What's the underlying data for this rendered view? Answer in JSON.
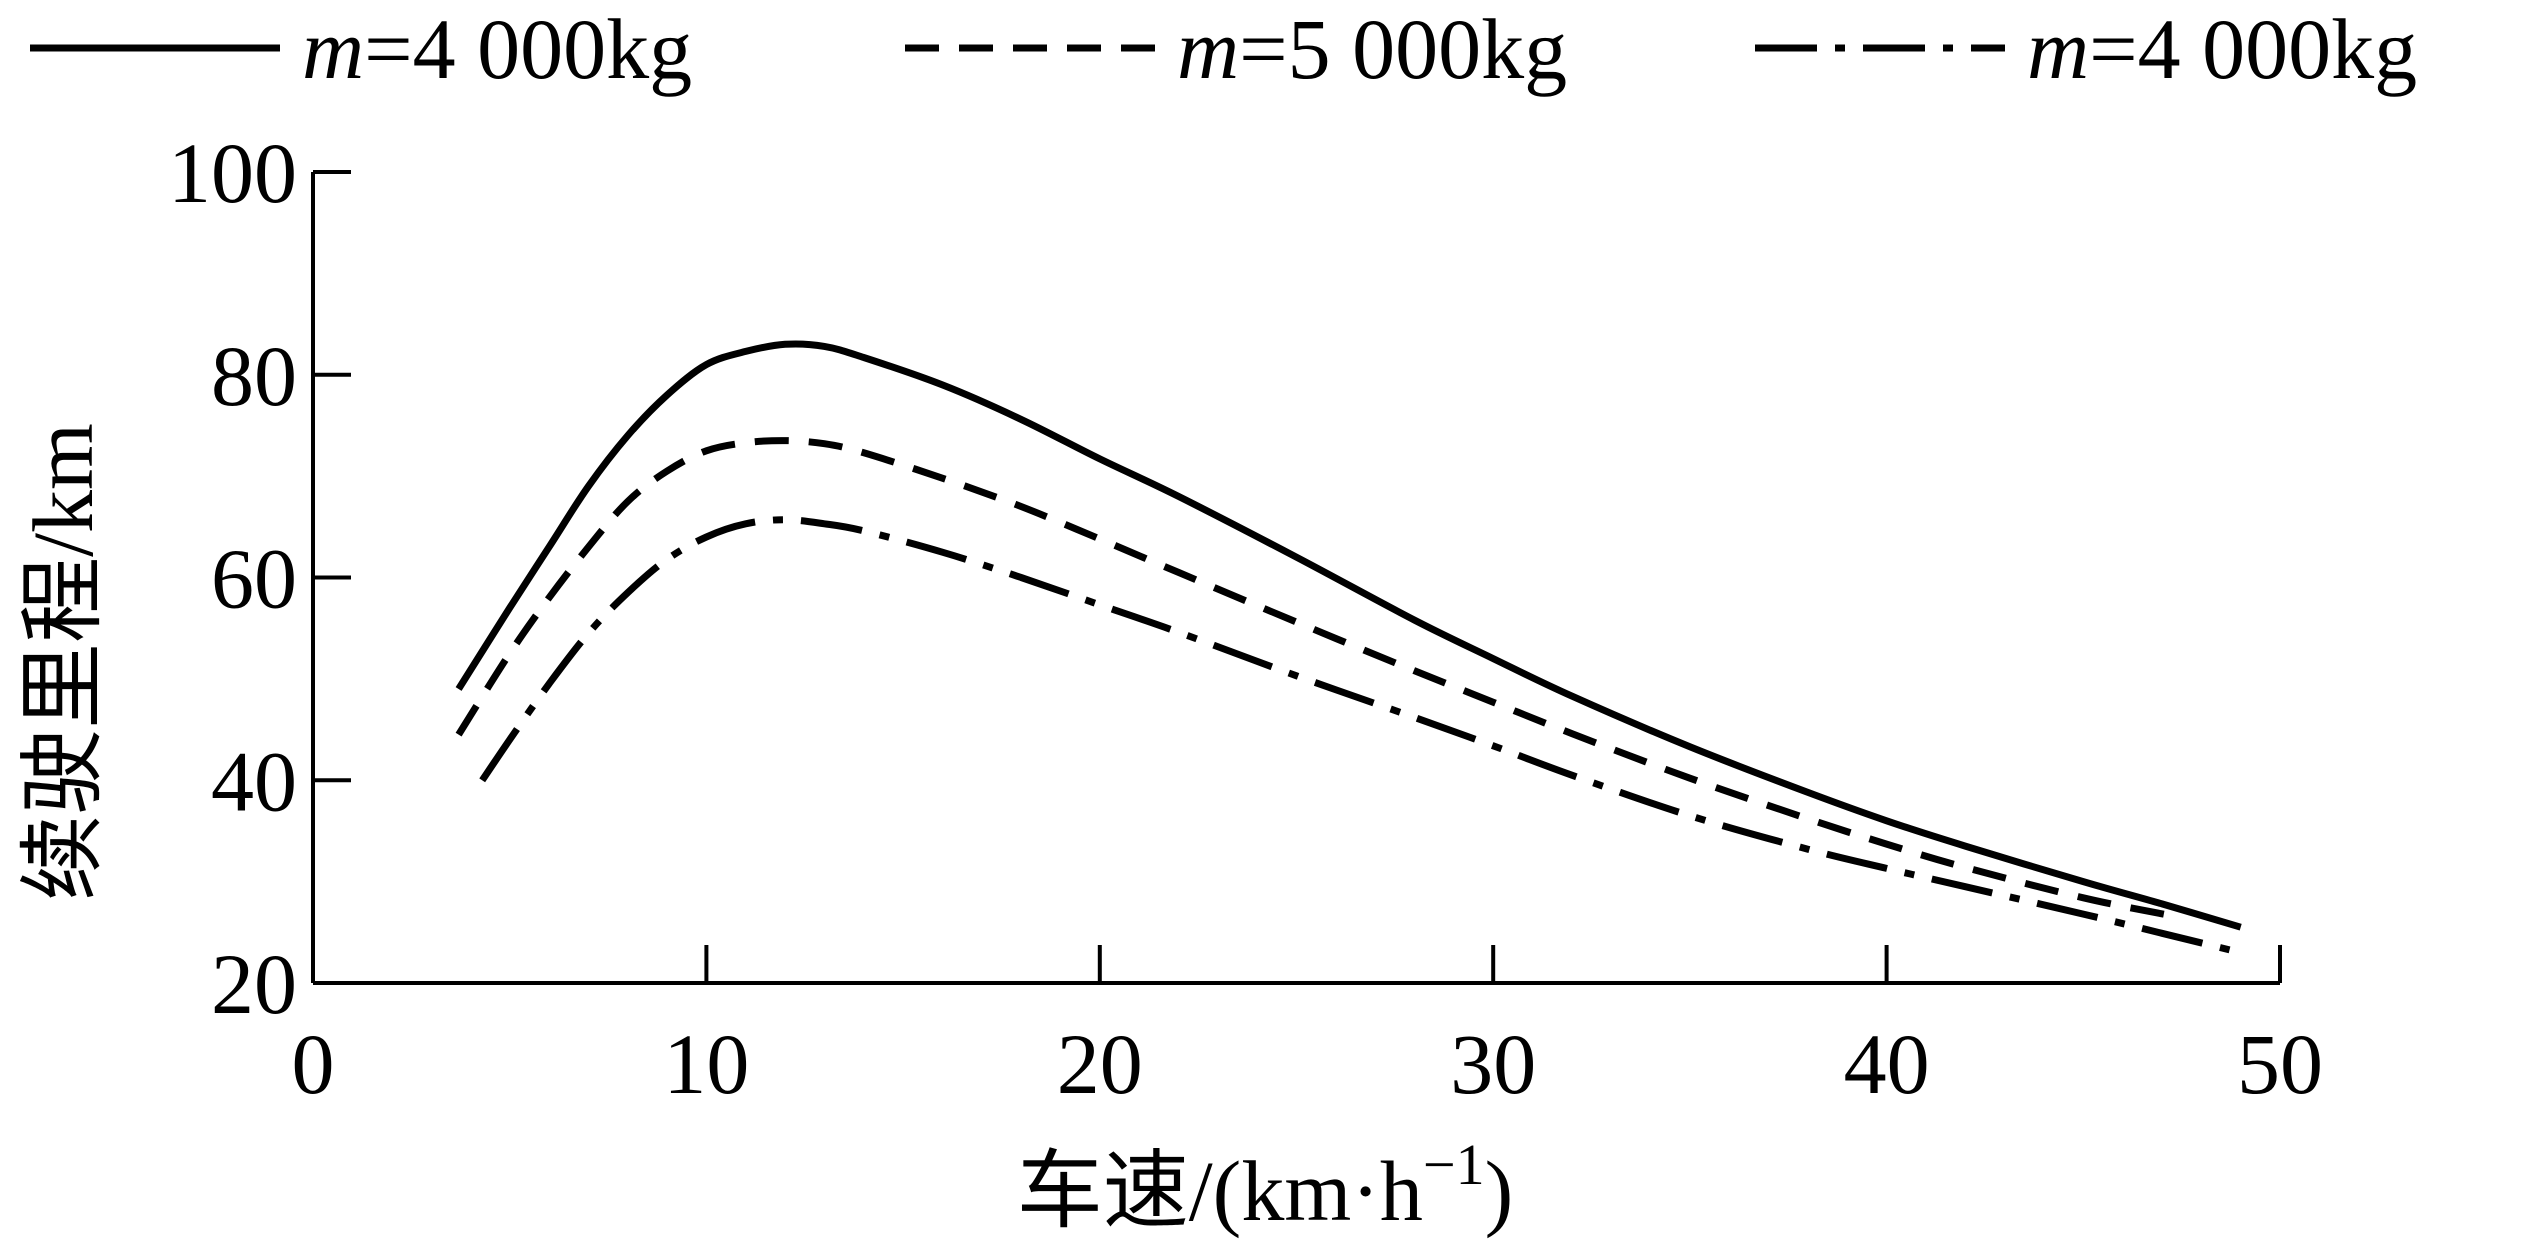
{
  "chart_data": {
    "type": "line",
    "title": "",
    "xlabel": "车速/(km·h",
    "xlabel_unit_exp": "−1",
    "xlabel_close": ")",
    "ylabel": "续驶里程/km",
    "xlim": [
      0,
      50
    ],
    "ylim": [
      20,
      100
    ],
    "xticks": [
      0,
      10,
      20,
      30,
      40,
      50
    ],
    "yticks": [
      20,
      40,
      60,
      80,
      100
    ],
    "grid": false,
    "legend": {
      "placement": "top",
      "entries": [
        {
          "prefix": "m",
          "text": "=4 000kg",
          "style": "solid"
        },
        {
          "prefix": "m",
          "text": "=5 000kg",
          "style": "dashed"
        },
        {
          "prefix": "m",
          "text": "=4 000kg",
          "style": "dash-dot"
        }
      ]
    },
    "series": [
      {
        "style": "solid",
        "color": "#000000",
        "x": [
          3.7,
          5,
          6,
          7,
          8,
          9,
          10,
          11,
          12,
          13,
          14,
          16,
          18,
          20,
          22,
          25,
          28,
          30,
          32,
          35,
          38,
          40,
          42,
          45,
          47,
          49
        ],
        "y": [
          49,
          57,
          63,
          69,
          74,
          78,
          81,
          82.3,
          83,
          82.8,
          81.7,
          79,
          75.6,
          71.7,
          68,
          62,
          55.8,
          52,
          48.3,
          43.3,
          38.8,
          36,
          33.5,
          30,
          27.8,
          25.5
        ]
      },
      {
        "style": "dashed",
        "color": "#000000",
        "x": [
          3.7,
          5,
          6,
          7,
          8,
          9,
          10,
          11,
          12,
          13,
          14,
          16,
          18,
          20,
          22,
          25,
          28,
          30,
          32,
          35,
          38,
          40,
          42,
          45,
          47.3
        ],
        "y": [
          44.5,
          52.5,
          58,
          63,
          67.5,
          70.5,
          72.5,
          73.3,
          73.5,
          73.2,
          72.3,
          69.8,
          67,
          63.8,
          60.5,
          55.6,
          50.8,
          47.7,
          44.6,
          40.2,
          36.2,
          33.7,
          31.4,
          28.4,
          26.6
        ]
      },
      {
        "style": "dash-dot",
        "color": "#000000",
        "x": [
          4.3,
          5,
          6,
          7,
          8,
          9,
          10,
          11,
          12,
          13,
          14,
          16,
          18,
          20,
          22,
          25,
          28,
          30,
          32,
          35,
          38,
          40,
          42,
          45,
          47,
          49
        ],
        "y": [
          40,
          44,
          49.5,
          54.5,
          58.5,
          61.8,
          64,
          65.3,
          65.7,
          65.3,
          64.6,
          62.5,
          60,
          57.3,
          54.6,
          50.3,
          46.2,
          43.4,
          40.5,
          36.5,
          33.2,
          31.3,
          29.5,
          26.8,
          24.9,
          23
        ]
      }
    ]
  }
}
